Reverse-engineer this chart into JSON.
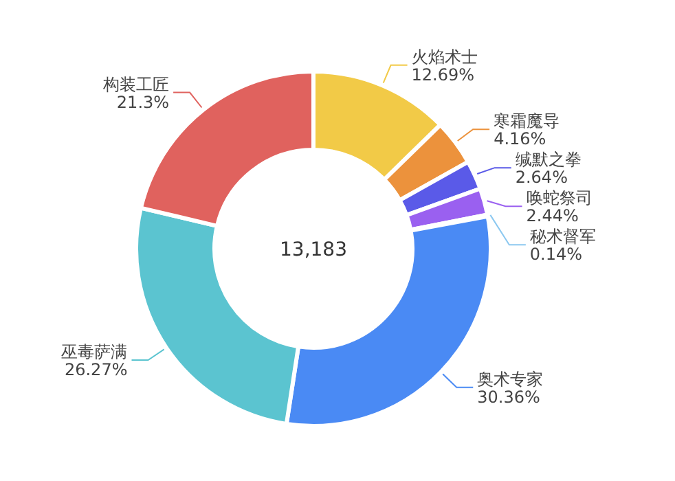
{
  "chart_data": {
    "type": "donut",
    "categories": [
      "火焰术士",
      "寒霜魔导",
      "缄默之拳",
      "唤蛇祭司",
      "秘术督军",
      "奥术专家",
      "巫毒萨满",
      "构装工匠"
    ],
    "values": [
      12.69,
      4.16,
      2.64,
      2.44,
      0.14,
      30.36,
      26.27,
      21.3
    ],
    "value_labels": [
      "12.69%",
      "4.16%",
      "2.64%",
      "2.44%",
      "0.14%",
      "30.36%",
      "26.27%",
      "21.3%"
    ],
    "colors": [
      "#f2ca47",
      "#ec923c",
      "#5a5ae8",
      "#9a60f0",
      "#8cc8f0",
      "#4a8af4",
      "#5bc4d0",
      "#e0625e"
    ],
    "annotations": [
      "13,183"
    ]
  }
}
